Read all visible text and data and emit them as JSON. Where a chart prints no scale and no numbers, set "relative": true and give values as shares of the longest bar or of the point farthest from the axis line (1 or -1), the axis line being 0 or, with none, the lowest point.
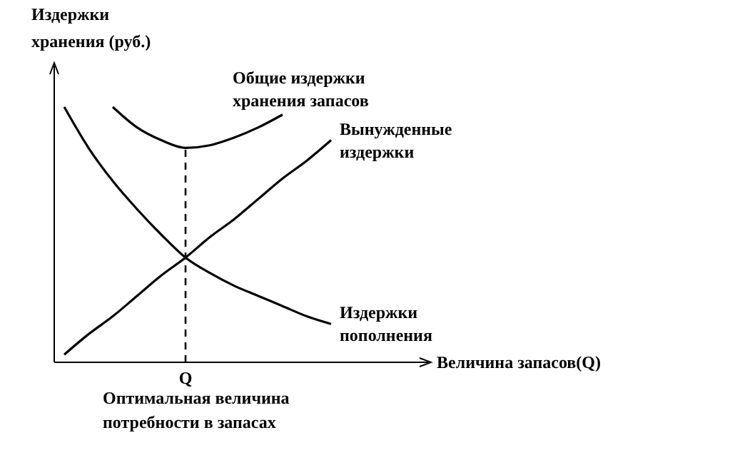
{
  "chart_data": {
    "type": "line",
    "relative": true,
    "ylabel": "Издержки хранения (руб.)",
    "categories": [
      null,
      null,
      null,
      null,
      null,
      null,
      null,
      null,
      null,
      null,
      null,
      null
    ],
    "series": [
      {
        "name": "Общие издержки хранения запасов",
        "color": "#000000",
        "values": [
          null,
          null,
          1.0,
          0.92,
          0.87,
          0.84,
          0.85,
          0.88,
          0.92,
          0.97,
          null,
          null
        ]
      },
      {
        "name": "Вынужденные издержки",
        "color": "#000000",
        "values": [
          0.03,
          0.11,
          0.18,
          0.26,
          0.34,
          0.41,
          0.49,
          0.56,
          0.64,
          0.72,
          0.79,
          0.87
        ]
      },
      {
        "name": "Издержки пополнения",
        "color": "#000000",
        "values": [
          1.0,
          0.84,
          0.71,
          0.6,
          0.5,
          0.41,
          0.35,
          0.3,
          0.26,
          0.22,
          0.18,
          0.15
        ]
      }
    ],
    "ref_lines": [
      {
        "axis": "x",
        "value": "Q",
        "line_style": "dashed",
        "color": "#000000"
      }
    ],
    "annotations": [
      "Величина запасов(Q)",
      "Оптимальная величина потребности в запасах"
    ],
    "marker": "none",
    "line_style": "solid"
  }
}
